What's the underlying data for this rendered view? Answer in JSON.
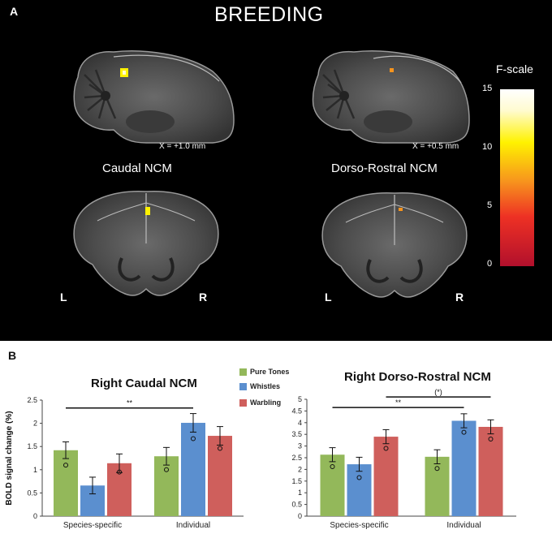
{
  "figure": {
    "panel_a": {
      "label": "A",
      "title": "BREEDING",
      "slices": [
        {
          "coord": "X = +1.0 mm",
          "region": "Caudal NCM"
        },
        {
          "coord": "X = +0.5 mm",
          "region": "Dorso-Rostral NCM"
        }
      ],
      "hemisphere_left": "L",
      "hemisphere_right": "R",
      "scale": {
        "title": "F-scale",
        "ticks": [
          "15",
          "10",
          "5",
          "0"
        ]
      }
    },
    "panel_b": {
      "label": "B",
      "legend": [
        {
          "name": "Pure Tones",
          "color": "#93b85a"
        },
        {
          "name": "Whistles",
          "color": "#5b8fcf"
        },
        {
          "name": "Warbling",
          "color": "#cf5f5c"
        }
      ]
    }
  },
  "chart_data": [
    {
      "type": "bar",
      "title": "Right Caudal NCM",
      "ylabel": "BOLD signal change (%)",
      "categories": [
        "Species-specific",
        "Individual"
      ],
      "ylim": [
        0,
        2.5
      ],
      "yticks": [
        "0",
        "0.5",
        "1",
        "1.5",
        "2",
        "2.5"
      ],
      "series": [
        {
          "name": "Pure Tones",
          "values": [
            1.42,
            1.29
          ],
          "errors": [
            0.18,
            0.19
          ],
          "markers": [
            1.1,
            1.0
          ]
        },
        {
          "name": "Whistles",
          "values": [
            0.66,
            2.01
          ],
          "errors": [
            0.18,
            0.2
          ],
          "markers": [
            null,
            1.67
          ]
        },
        {
          "name": "Warbling",
          "values": [
            1.14,
            1.73
          ],
          "errors": [
            0.2,
            0.2
          ],
          "markers": [
            0.95,
            1.46
          ]
        }
      ],
      "significance": [
        {
          "text": "**",
          "from": "Species-specific / Pure Tones",
          "to": "Individual / Whistles",
          "y": 2.33
        }
      ]
    },
    {
      "type": "bar",
      "title": "Right Dorso-Rostral NCM",
      "ylabel": "",
      "categories": [
        "Species-specific",
        "Individual"
      ],
      "ylim": [
        0,
        5
      ],
      "yticks": [
        "0",
        "0.5",
        "1",
        "1.5",
        "2",
        "2.5",
        "3",
        "3.5",
        "4",
        "4.5",
        "5"
      ],
      "series": [
        {
          "name": "Pure Tones",
          "values": [
            2.63,
            2.54
          ],
          "errors": [
            0.3,
            0.3
          ],
          "markers": [
            2.12,
            2.04
          ]
        },
        {
          "name": "Whistles",
          "values": [
            2.22,
            4.08
          ],
          "errors": [
            0.3,
            0.3
          ],
          "markers": [
            1.65,
            3.59
          ]
        },
        {
          "name": "Warbling",
          "values": [
            3.4,
            3.82
          ],
          "errors": [
            0.3,
            0.3
          ],
          "markers": [
            2.9,
            3.3
          ]
        }
      ],
      "significance": [
        {
          "text": "**",
          "from": "Species-specific / Pure Tones",
          "to": "Individual / Whistles",
          "y": 4.65
        },
        {
          "text": "(*)",
          "from": "Species-specific / Warbling",
          "to": "Individual / Warbling",
          "y": 5.1
        }
      ]
    }
  ]
}
